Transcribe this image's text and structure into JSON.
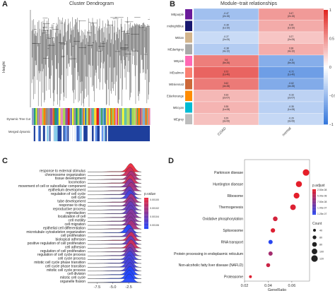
{
  "panelA": {
    "letter": "A",
    "title": "Cluster Dendrogram",
    "ylabel": "Height",
    "bar1_label": "Dynamic Tree Cut",
    "bar2_label": "Merged dynamic"
  },
  "panelB": {
    "letter": "B",
    "title": "Module−trait relationships",
    "modules": [
      "MEpurple",
      "MEmidnightblue",
      "MEtan",
      "MEdarkgrey",
      "MEpink",
      "MEsalmon",
      "MEsienna3",
      "MEdarkorange",
      "MEcyan",
      "MEgrey"
    ],
    "module_colors": [
      "#6a1b9a",
      "#191970",
      "#d2b48c",
      "#a9a9a9",
      "#ff69b4",
      "#fa8072",
      "#cd6839",
      "#ff8c00",
      "#00bcd4",
      "#bdbdbd"
    ],
    "traits": [
      "COAD",
      "normal"
    ],
    "cell_text": [
      [
        "-0.47\n(2e-15)",
        "0.47\n(2e-15)"
      ],
      [
        "-0.39\n(1e-10)",
        "0.39\n(1e-10)"
      ],
      [
        "-0.27\n(2e-05)",
        "0.27\n(2e-05)"
      ],
      [
        "-0.38\n(4e-10)",
        "0.38\n(4e-10)"
      ],
      [
        "0.6\n(5e-26)",
        "-0.6\n(5e-26)"
      ],
      [
        "0.72\n(1e-40)",
        "-0.72\n(1e-40)"
      ],
      [
        "0.62\n(4e-28)",
        "-0.62\n(4e-28)"
      ],
      [
        "0.33\n(2e-07)",
        "-0.33\n(2e-07)"
      ],
      [
        "0.35\n(1e-08)",
        "-0.35\n(1e-08)"
      ],
      [
        "0.29\n(3e-06)",
        "-0.29\n(3e-06)"
      ]
    ],
    "colorbar_ticks": [
      "1",
      "0.5",
      "0",
      "−0.5",
      "−1"
    ]
  },
  "panelC": {
    "letter": "C",
    "legend_title": "p.value",
    "legend_values": [
      "0.00100",
      "0.00102",
      "0.00104",
      "0.00106"
    ],
    "xticks": [
      "-7.5",
      "-5.0",
      "-2.5"
    ]
  },
  "panelD": {
    "letter": "D",
    "xlabel": "GeneRatio",
    "xticks": [
      "0.02",
      "0.04",
      "0.06"
    ],
    "legend_p_title": "p.adjust",
    "legend_p_values": [
      "2.50e-08",
      "5.00e-08",
      "7.50e-08",
      "1.00e-07",
      "1.25e-07"
    ],
    "legend_count_title": "Count",
    "legend_count_values": [
      "40",
      "80",
      "80",
      "100",
      "120"
    ]
  },
  "chart_data": [
    {
      "type": "heatmap",
      "title": "Module−trait relationships",
      "rows": [
        "MEpurple",
        "MEmidnightblue",
        "MEtan",
        "MEdarkgrey",
        "MEpink",
        "MEsalmon",
        "MEsienna3",
        "MEdarkorange",
        "MEcyan",
        "MEgrey"
      ],
      "columns": [
        "COAD",
        "normal"
      ],
      "values": [
        [
          -0.47,
          0.47
        ],
        [
          -0.39,
          0.39
        ],
        [
          -0.27,
          0.27
        ],
        [
          -0.38,
          0.38
        ],
        [
          0.6,
          -0.6
        ],
        [
          0.72,
          -0.72
        ],
        [
          0.62,
          -0.62
        ],
        [
          0.33,
          -0.33
        ],
        [
          0.35,
          -0.35
        ],
        [
          0.29,
          -0.29
        ]
      ],
      "scale": [
        -1,
        1
      ]
    },
    {
      "type": "area",
      "subtype": "ridgeline",
      "categories": [
        "response to external stimulus",
        "chromosome organization",
        "tissue development",
        "locomotion",
        "movement of cell or subcellular component",
        "epithelium development",
        "regulation of cell cycle",
        "cell cycle",
        "tube development",
        "response to drug",
        "reproductive process",
        "reproduction",
        "localization of cell",
        "cell motility",
        "cell migration",
        "epithelial cell differentiation",
        "microtubule cytoskeleton organization",
        "cell proliferation",
        "biological adhesion",
        "positive regulation of cell proliferation",
        "cell adhesion",
        "regulation of cell proliferation",
        "regulation of cell cycle process",
        "cell cycle process",
        "mitotic cell cycle phase transition",
        "cell cycle phase transition",
        "mitotic cell cycle process",
        "cell division",
        "mitotic cell cycle",
        "organelle fission"
      ],
      "peak_x": [
        -2.2,
        -2.3,
        -2.1,
        -2.2,
        -2.3,
        -2.1,
        -2.4,
        -2.3,
        -2.1,
        -2.2,
        -2.2,
        -2.2,
        -2.1,
        -2.2,
        -2.2,
        -2.1,
        -2.5,
        -2.2,
        -2.1,
        -2.2,
        -2.1,
        -2.2,
        -2.3,
        -2.3,
        -2.4,
        -2.4,
        -2.3,
        -2.3,
        -2.4,
        -2.4
      ],
      "p_value": [
        0.001,
        0.00101,
        0.00102,
        0.00101,
        0.00103,
        0.00102,
        0.00104,
        0.00105,
        0.00102,
        0.00103,
        0.00104,
        0.00104,
        0.00103,
        0.00103,
        0.00103,
        0.00102,
        0.00106,
        0.00104,
        0.00101,
        0.00104,
        0.00101,
        0.00103,
        0.00104,
        0.00105,
        0.00105,
        0.00105,
        0.00105,
        0.00106,
        0.00106,
        0.00106
      ],
      "xlim": [
        -9,
        -0.5
      ]
    },
    {
      "type": "scatter",
      "xlabel": "GeneRatio",
      "categories": [
        "Parkinson disease",
        "Huntington disease",
        "Ribosome",
        "Thermogenesis",
        "Oxidative phosphorylation",
        "Spliceosome",
        "RNA transport",
        "Protein processing in endoplasmic reticulum",
        "Non-alcoholic fatty liver disease (NAFLD)",
        "Proteasome"
      ],
      "gene_ratio": [
        0.072,
        0.066,
        0.064,
        0.061,
        0.046,
        0.044,
        0.042,
        0.042,
        0.04,
        0.025
      ],
      "p_adjust": [
        2.5e-08,
        2.6e-08,
        2.6e-08,
        3e-08,
        3.5e-08,
        3e-08,
        1.25e-07,
        6e-08,
        4e-08,
        3e-08
      ],
      "count": [
        120,
        110,
        105,
        100,
        80,
        75,
        70,
        70,
        65,
        40
      ],
      "xlim": [
        0.02,
        0.075
      ]
    }
  ]
}
